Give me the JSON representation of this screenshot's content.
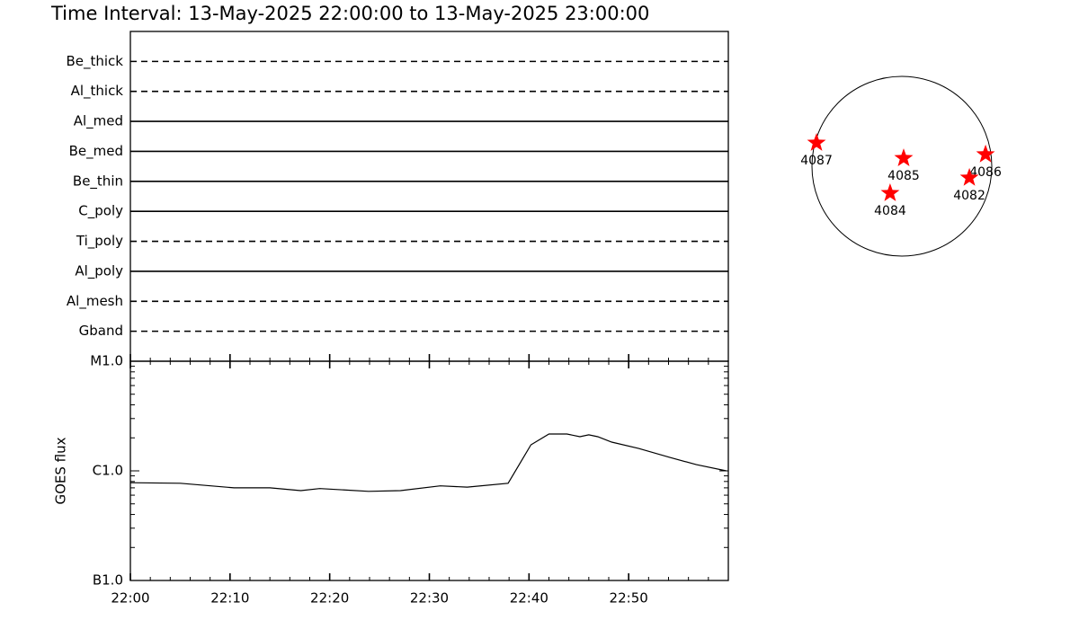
{
  "title": "Time Interval: 13-May-2025 22:00:00 to 13-May-2025 23:00:00",
  "chart_data": [
    {
      "type": "timeline",
      "xlim": [
        0,
        60
      ],
      "categories": [
        "Be_thick",
        "Al_thick",
        "Al_med",
        "Be_med",
        "Be_thin",
        "C_poly",
        "Ti_poly",
        "Al_poly",
        "Al_mesh",
        "Gband"
      ],
      "styles": [
        "dashed",
        "dashed",
        "solid",
        "solid",
        "solid",
        "solid",
        "dashed",
        "solid",
        "dashed",
        "dashed"
      ],
      "spans": [
        [
          0,
          60
        ],
        [
          0,
          60
        ],
        [
          0,
          60
        ],
        [
          0,
          60
        ],
        [
          0,
          60
        ],
        [
          0,
          60
        ],
        [
          0,
          60
        ],
        [
          0,
          60
        ],
        [
          0,
          60
        ],
        [
          0,
          60
        ]
      ]
    },
    {
      "type": "line",
      "y_label": "GOES flux",
      "log_scale": true,
      "color": "#000000",
      "xlim": [
        0,
        60
      ],
      "xticks": [
        {
          "value": 0,
          "label": "22:00"
        },
        {
          "value": 10,
          "label": "22:10"
        },
        {
          "value": 20,
          "label": "22:20"
        },
        {
          "value": 30,
          "label": "22:30"
        },
        {
          "value": 40,
          "label": "22:40"
        },
        {
          "value": 50,
          "label": "22:50"
        }
      ],
      "ylim": [
        1e-07,
        1e-05
      ],
      "yticks": [
        {
          "value": 1e-05,
          "label": "M1.0"
        },
        {
          "value": 1e-06,
          "label": "C1.0"
        },
        {
          "value": 1e-07,
          "label": "B1.0"
        }
      ],
      "x": [
        0,
        5.0,
        10.4,
        14.0,
        17.1,
        19.0,
        23.9,
        27.1,
        31.1,
        33.8,
        37.9,
        40.2,
        42.0,
        43.8,
        45.1,
        46.0,
        46.9,
        48.3,
        51.0,
        54.1,
        56.8,
        59.8
      ],
      "values": [
        7.8e-07,
        7.7e-07,
        7e-07,
        7e-07,
        6.6e-07,
        6.9e-07,
        6.5e-07,
        6.6e-07,
        7.3e-07,
        7.1e-07,
        7.7e-07,
        1.73e-06,
        2.17e-06,
        2.17e-06,
        2.05e-06,
        2.13e-06,
        2.05e-06,
        1.83e-06,
        1.6e-06,
        1.33e-06,
        1.14e-06,
        1e-06
      ]
    },
    {
      "type": "scatter",
      "color": "#ff0000",
      "xlim": [
        -950,
        950
      ],
      "ylim": [
        -950,
        950
      ],
      "labels": [
        "4087",
        "4085",
        "4086",
        "4082",
        "4084"
      ],
      "x": [
        -902,
        19,
        884,
        713,
        -124
      ],
      "values": [
        247,
        85,
        124,
        -123,
        -285
      ]
    }
  ]
}
